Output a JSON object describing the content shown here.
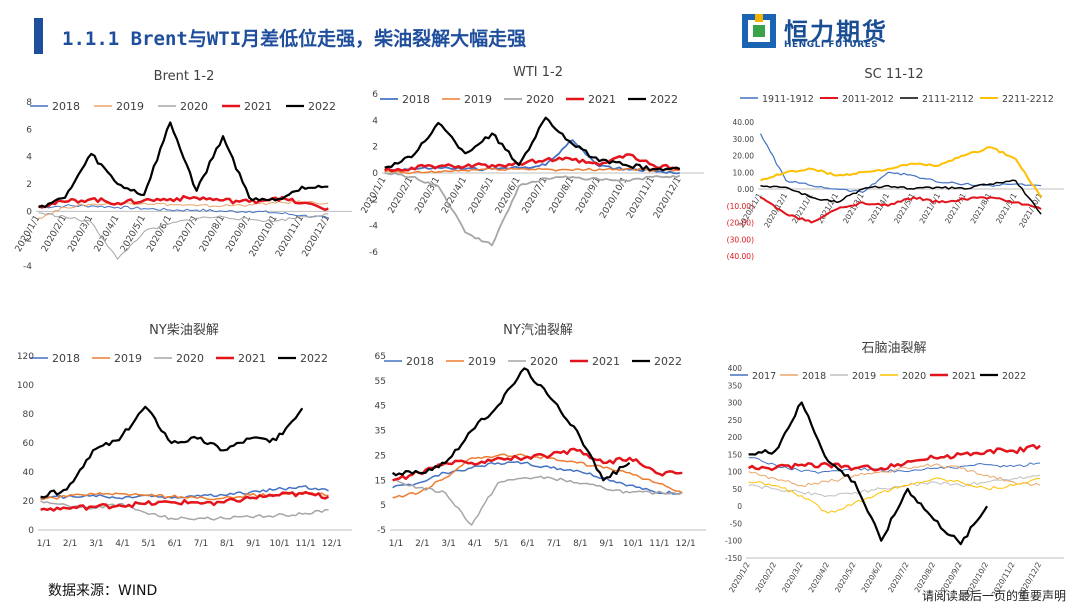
{
  "page": {
    "title": "1.1.1 Brent与WTI月差低位走强，柴油裂解大幅走强",
    "source": "数据来源：WIND",
    "disclaimer": "请阅读最后一页的重要声明",
    "accent_color": "#1f4e9c"
  },
  "logo": {
    "name_cn": "恒力期货",
    "name_en": "HENGLI FUTURES"
  },
  "chart_data": [
    {
      "id": "brent",
      "type": "line",
      "title": "Brent 1-2",
      "xlabel": "",
      "ylabel": "",
      "ylim": [
        -4,
        8
      ],
      "yticks": [
        -4,
        -2,
        0,
        2,
        4,
        6,
        8
      ],
      "ytick_labels": [
        "-4",
        "-2",
        "0",
        "2",
        "4",
        "6",
        "8"
      ],
      "xticks": [
        "2020/1/1",
        "2020/2/1",
        "2020/3/1",
        "2020/4/1",
        "2020/5/1",
        "2020/6/1",
        "2020/7/1",
        "2020/8/1",
        "2020/9/1",
        "2020/10/1",
        "2020/11/1",
        "2020/12/1"
      ],
      "x_rotated": true,
      "legend_position": "top",
      "zero_line": true,
      "grid": false,
      "series": [
        {
          "name": "2018",
          "color": "#4472c4",
          "width": 1,
          "values": [
            0.3,
            0.4,
            0.4,
            0.3,
            0.2,
            0.1,
            0.1,
            0.0,
            0.0,
            -0.1,
            -0.3,
            -0.5
          ]
        },
        {
          "name": "2019",
          "color": "#e8a66a",
          "width": 1,
          "values": [
            -0.5,
            0.3,
            0.5,
            0.6,
            0.6,
            0.5,
            0.4,
            0.4,
            0.5,
            0.6,
            0.7,
            0.6
          ]
        },
        {
          "name": "2020",
          "color": "#a6a6a6",
          "width": 1,
          "values": [
            -0.1,
            -0.4,
            -0.8,
            -3.5,
            -1.5,
            -0.9,
            -0.5,
            -0.4,
            -0.6,
            -0.7,
            -0.4,
            -0.2
          ]
        },
        {
          "name": "2021",
          "color": "#e3141b",
          "width": 2.5,
          "values": [
            0.4,
            0.7,
            0.9,
            0.6,
            0.8,
            0.9,
            1.0,
            0.8,
            0.7,
            1.0,
            0.6,
            0.2
          ]
        },
        {
          "name": "2022",
          "color": "#000000",
          "width": 2.2,
          "values": [
            0.3,
            1.0,
            4.2,
            2.0,
            1.2,
            6.5,
            1.5,
            5.5,
            1.0,
            0.8,
            1.8,
            1.8
          ]
        }
      ]
    },
    {
      "id": "wti",
      "type": "line",
      "title": "WTI 1-2",
      "xlabel": "",
      "ylabel": "",
      "ylim": [
        -6,
        6
      ],
      "yticks": [
        -6,
        -4,
        -2,
        0,
        2,
        4,
        6
      ],
      "ytick_labels": [
        "-6",
        "-4",
        "-2",
        "0",
        "2",
        "4",
        "6"
      ],
      "xticks": [
        "2020/1/1",
        "2020/2/1",
        "2020/3/1",
        "2020/4/1",
        "2020/5/1",
        "2020/6/1",
        "2020/7/1",
        "2020/8/1",
        "2020/9/1",
        "2020/10/1",
        "2020/11/1",
        "2020/12/1"
      ],
      "x_rotated": true,
      "legend_position": "top",
      "zero_line": true,
      "grid": false,
      "series": [
        {
          "name": "2018",
          "color": "#4472c4",
          "width": 1.8,
          "values": [
            0.2,
            0.3,
            0.4,
            0.3,
            0.3,
            0.4,
            0.6,
            2.5,
            0.5,
            0.3,
            0.2,
            0.0
          ]
        },
        {
          "name": "2019",
          "color": "#ed7d31",
          "width": 1.5,
          "values": [
            0.1,
            0.0,
            0.1,
            0.2,
            0.3,
            0.3,
            0.3,
            0.2,
            0.3,
            0.3,
            0.2,
            0.2
          ]
        },
        {
          "name": "2020",
          "color": "#a6a6a6",
          "width": 1.8,
          "values": [
            0.0,
            -0.3,
            -1.0,
            -4.5,
            -5.5,
            -1.0,
            -0.4,
            -0.3,
            -0.5,
            -0.6,
            -0.3,
            -0.2
          ]
        },
        {
          "name": "2021",
          "color": "#e3141b",
          "width": 2.5,
          "values": [
            0.2,
            0.4,
            0.5,
            0.5,
            0.6,
            0.7,
            1.0,
            1.0,
            0.6,
            1.4,
            0.6,
            0.3
          ]
        },
        {
          "name": "2022",
          "color": "#000000",
          "width": 2.2,
          "values": [
            0.4,
            1.2,
            3.8,
            1.5,
            3.0,
            0.6,
            4.2,
            2.2,
            0.9,
            0.6,
            0.3,
            0.3
          ]
        }
      ]
    },
    {
      "id": "sc",
      "type": "line",
      "title": "SC 11-12",
      "xlabel": "",
      "ylabel": "",
      "ylim": [
        -40,
        40
      ],
      "yticks": [
        -40,
        -30,
        -20,
        -10,
        0,
        10,
        20,
        30,
        40
      ],
      "ytick_labels": [
        "(40.00)",
        "(30.00)",
        "(20.00)",
        "(10.00)",
        "0.00",
        "10.00",
        "20.00",
        "30.00",
        "40.00"
      ],
      "negative_label_color": "#e3141b",
      "xticks": [
        "2020/11/1",
        "2020/12/1",
        "2021/1/1",
        "2021/2/1",
        "2021/3/1",
        "2021/4/1",
        "2021/5/1",
        "2021/6/1",
        "2021/7/1",
        "2021/8/1",
        "2021/9/1",
        "2021/10/1"
      ],
      "x_rotated": true,
      "legend_position": "top",
      "zero_line": true,
      "grid": false,
      "series": [
        {
          "name": "1911-1912",
          "color": "#4472c4",
          "width": 1.2,
          "values": [
            33,
            5,
            2,
            0,
            -2,
            10,
            8,
            4,
            3,
            2,
            3,
            2
          ]
        },
        {
          "name": "2011-2012",
          "color": "#e3141b",
          "width": 2,
          "values": [
            -5,
            -15,
            -20,
            -12,
            -8,
            -10,
            -5,
            -8,
            -6,
            -5,
            -8,
            -12
          ]
        },
        {
          "name": "2111-2112",
          "color": "#000000",
          "width": 1.5,
          "values": [
            2,
            1,
            -5,
            -8,
            0,
            2,
            0,
            1,
            0,
            3,
            5,
            -15
          ]
        },
        {
          "name": "2211-2212",
          "color": "#ffc000",
          "width": 2,
          "values": [
            5,
            10,
            12,
            8,
            10,
            12,
            15,
            14,
            20,
            25,
            18,
            -5
          ]
        }
      ]
    },
    {
      "id": "ny-diesel",
      "type": "line",
      "title": "NY柴油裂解",
      "xlabel": "",
      "ylabel": "",
      "ylim": [
        0,
        120
      ],
      "yticks": [
        0,
        20,
        40,
        60,
        80,
        100,
        120
      ],
      "ytick_labels": [
        "0",
        "20",
        "40",
        "60",
        "80",
        "100",
        "120"
      ],
      "xticks": [
        "1/1",
        "2/1",
        "3/1",
        "4/1",
        "5/1",
        "6/1",
        "7/1",
        "8/1",
        "9/1",
        "10/1",
        "11/1",
        "12/1"
      ],
      "x_rotated": false,
      "legend_position": "top",
      "zero_line": false,
      "grid": false,
      "series": [
        {
          "name": "2018",
          "color": "#4472c4",
          "width": 1.5,
          "values": [
            22,
            23,
            24,
            22,
            24,
            22,
            24,
            24,
            26,
            28,
            30,
            27
          ]
        },
        {
          "name": "2019",
          "color": "#ed7d31",
          "width": 1.5,
          "values": [
            21,
            23,
            25,
            25,
            24,
            23,
            22,
            22,
            24,
            24,
            26,
            24
          ]
        },
        {
          "name": "2020",
          "color": "#a6a6a6",
          "width": 1.5,
          "values": [
            20,
            17,
            15,
            18,
            12,
            8,
            8,
            8,
            9,
            10,
            11,
            14
          ]
        },
        {
          "name": "2021",
          "color": "#e3141b",
          "width": 2.5,
          "values": [
            14,
            15,
            16,
            17,
            18,
            19,
            19,
            19,
            22,
            24,
            25,
            23
          ]
        },
        {
          "name": "2022",
          "color": "#000000",
          "width": 2.2,
          "values": [
            23,
            28,
            55,
            62,
            85,
            60,
            63,
            55,
            63,
            62,
            84,
            null
          ]
        }
      ]
    },
    {
      "id": "ny-gasoline",
      "type": "line",
      "title": "NY汽油裂解",
      "xlabel": "",
      "ylabel": "",
      "ylim": [
        -5,
        65
      ],
      "yticks": [
        -5,
        5,
        15,
        25,
        35,
        45,
        55,
        65
      ],
      "ytick_labels": [
        "-5",
        "5",
        "15",
        "25",
        "35",
        "45",
        "55",
        "65"
      ],
      "xticks": [
        "1/1",
        "2/1",
        "3/1",
        "4/1",
        "5/1",
        "6/1",
        "7/1",
        "8/1",
        "9/1",
        "10/1",
        "11/1",
        "12/1"
      ],
      "x_rotated": false,
      "legend_position": "top",
      "zero_line": false,
      "grid": false,
      "series": [
        {
          "name": "2018",
          "color": "#4472c4",
          "width": 1.5,
          "values": [
            12,
            14,
            18,
            20,
            22,
            22,
            20,
            19,
            16,
            13,
            10,
            10
          ]
        },
        {
          "name": "2019",
          "color": "#ed7d31",
          "width": 1.5,
          "values": [
            8,
            10,
            16,
            24,
            25,
            25,
            24,
            22,
            20,
            18,
            14,
            10
          ]
        },
        {
          "name": "2020",
          "color": "#a6a6a6",
          "width": 1.5,
          "values": [
            15,
            12,
            10,
            -3,
            14,
            16,
            16,
            14,
            12,
            10,
            10,
            10
          ]
        },
        {
          "name": "2021",
          "color": "#e3141b",
          "width": 2.5,
          "values": [
            15,
            18,
            22,
            22,
            24,
            24,
            25,
            27,
            22,
            24,
            18,
            18
          ]
        },
        {
          "name": "2022",
          "color": "#000000",
          "width": 2.2,
          "values": [
            18,
            18,
            22,
            35,
            45,
            60,
            48,
            35,
            15,
            22,
            null,
            null
          ]
        }
      ]
    },
    {
      "id": "naphtha",
      "type": "line",
      "title": "石脑油裂解",
      "xlabel": "",
      "ylabel": "",
      "ylim": [
        -150,
        400
      ],
      "yticks": [
        -150,
        -100,
        -50,
        0,
        50,
        100,
        150,
        200,
        250,
        300,
        350,
        400
      ],
      "ytick_labels": [
        "-150",
        "-100",
        "-50",
        "0",
        "50",
        "100",
        "150",
        "200",
        "250",
        "300",
        "350",
        "400"
      ],
      "xticks": [
        "2020/1/2",
        "2020/2/2",
        "2020/3/2",
        "2020/4/2",
        "2020/5/2",
        "2020/6/2",
        "2020/7/2",
        "2020/8/2",
        "2020/9/2",
        "2020/10/2",
        "2020/11/2",
        "2020/12/2"
      ],
      "x_rotated": true,
      "legend_position": "top",
      "zero_line": false,
      "grid": false,
      "series": [
        {
          "name": "2017",
          "color": "#4472c4",
          "width": 1,
          "values": [
            140,
            120,
            100,
            100,
            110,
            105,
            100,
            110,
            115,
            120,
            115,
            125
          ]
        },
        {
          "name": "2018",
          "color": "#e8a66a",
          "width": 1,
          "values": [
            100,
            80,
            60,
            70,
            90,
            100,
            110,
            120,
            110,
            90,
            70,
            60
          ]
        },
        {
          "name": "2019",
          "color": "#bfbfbf",
          "width": 1,
          "values": [
            60,
            50,
            40,
            30,
            40,
            50,
            60,
            70,
            60,
            70,
            80,
            90
          ]
        },
        {
          "name": "2020",
          "color": "#ffc000",
          "width": 1,
          "values": [
            70,
            60,
            30,
            -20,
            10,
            40,
            60,
            80,
            70,
            50,
            60,
            80
          ]
        },
        {
          "name": "2021",
          "color": "#e3141b",
          "width": 2.5,
          "values": [
            110,
            110,
            120,
            120,
            110,
            110,
            130,
            140,
            150,
            160,
            160,
            175
          ]
        },
        {
          "name": "2022",
          "color": "#000000",
          "width": 2.2,
          "values": [
            150,
            160,
            300,
            130,
            70,
            -100,
            50,
            -40,
            -110,
            0,
            null,
            null
          ]
        }
      ]
    }
  ]
}
